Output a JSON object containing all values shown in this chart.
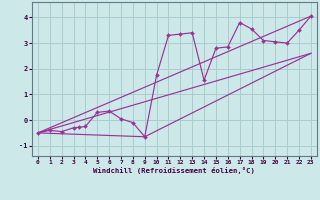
{
  "xlabel": "Windchill (Refroidissement éolien,°C)",
  "bg_color": "#cce8e8",
  "grid_color": "#aacccc",
  "line_color": "#993399",
  "spine_color": "#667788",
  "xlim": [
    -0.5,
    23.5
  ],
  "ylim": [
    -1.4,
    4.6
  ],
  "xticks": [
    0,
    1,
    2,
    3,
    4,
    5,
    6,
    7,
    8,
    9,
    10,
    11,
    12,
    13,
    14,
    15,
    16,
    17,
    18,
    19,
    20,
    21,
    22,
    23
  ],
  "yticks": [
    -1,
    0,
    1,
    2,
    3,
    4
  ],
  "scatter_x": [
    0,
    1,
    2,
    3,
    3.5,
    4,
    5,
    6,
    7,
    8,
    9,
    10,
    11,
    12,
    13,
    14,
    15,
    16,
    17,
    18,
    19,
    20,
    21,
    22,
    23
  ],
  "scatter_y": [
    -0.5,
    -0.4,
    -0.45,
    -0.3,
    -0.28,
    -0.25,
    0.3,
    0.35,
    0.05,
    -0.1,
    -0.65,
    1.75,
    3.3,
    3.35,
    3.4,
    1.55,
    2.8,
    2.85,
    3.8,
    3.55,
    3.1,
    3.05,
    3.0,
    3.5,
    4.05
  ],
  "line1_x": [
    0,
    23
  ],
  "line1_y": [
    -0.5,
    2.6
  ],
  "line2_x": [
    0,
    23
  ],
  "line2_y": [
    -0.5,
    4.05
  ],
  "line3_x": [
    0,
    9,
    23
  ],
  "line3_y": [
    -0.5,
    -0.65,
    2.6
  ]
}
